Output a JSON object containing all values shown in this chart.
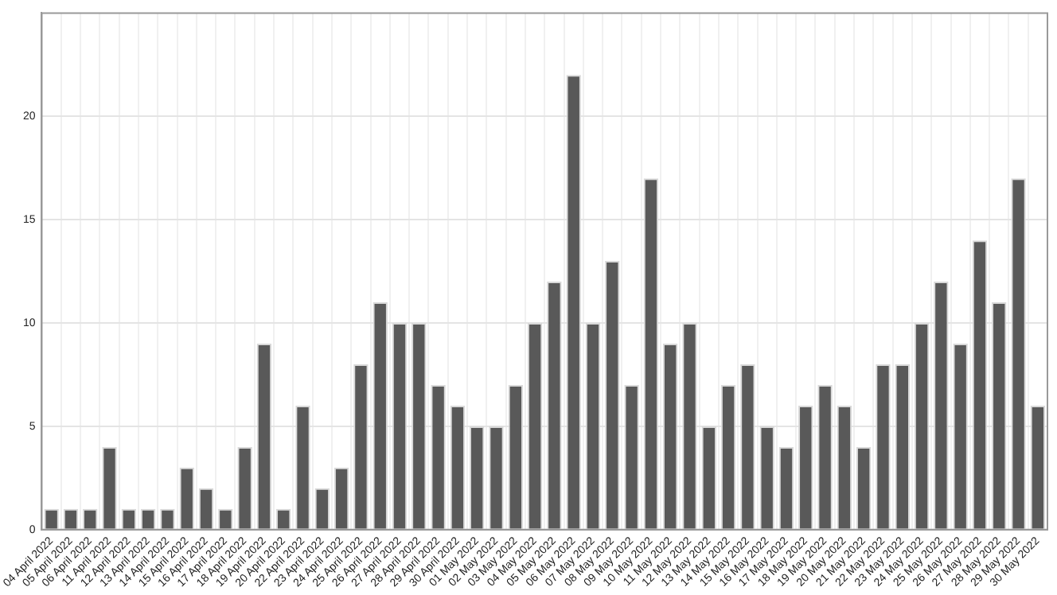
{
  "chart_data": {
    "type": "bar",
    "categories": [
      "04 April 2022",
      "05 April 2022",
      "06 April 2022",
      "11 April 2022",
      "12 April 2022",
      "13 April 2022",
      "14 April 2022",
      "15 April 2022",
      "16 April 2022",
      "17 April 2022",
      "18 April 2022",
      "19 April 2022",
      "20 April 2022",
      "22 April 2022",
      "23 April 2022",
      "24 April 2022",
      "25 April 2022",
      "26 April 2022",
      "27 April 2022",
      "28 April 2022",
      "29 April 2022",
      "30 April 2022",
      "01 May 2022",
      "02 May 2022",
      "03 May 2022",
      "04 May 2022",
      "05 May 2022",
      "06 May 2022",
      "07 May 2022",
      "08 May 2022",
      "09 May 2022",
      "10 May 2022",
      "11 May 2022",
      "12 May 2022",
      "13 May 2022",
      "14 May 2022",
      "15 May 2022",
      "16 May 2022",
      "17 May 2022",
      "18 May 2022",
      "19 May 2022",
      "20 May 2022",
      "21 May 2022",
      "22 May 2022",
      "23 May 2022",
      "24 May 2022",
      "25 May 2022",
      "26 May 2022",
      "27 May 2022",
      "28 May 2022",
      "29 May 2022",
      "30 May 2022"
    ],
    "values": [
      1,
      1,
      1,
      4,
      1,
      1,
      1,
      3,
      2,
      1,
      4,
      9,
      1,
      6,
      2,
      3,
      8,
      11,
      10,
      10,
      7,
      6,
      5,
      5,
      7,
      10,
      12,
      22,
      10,
      13,
      7,
      17,
      9,
      10,
      5,
      7,
      8,
      5,
      4,
      6,
      7,
      6,
      4,
      8,
      8,
      10,
      12,
      9,
      14,
      11,
      17,
      6
    ],
    "color": "#595959",
    "ylim": [
      0,
      25
    ],
    "yticks": [
      0,
      5,
      10,
      15,
      20
    ],
    "grid": true
  }
}
